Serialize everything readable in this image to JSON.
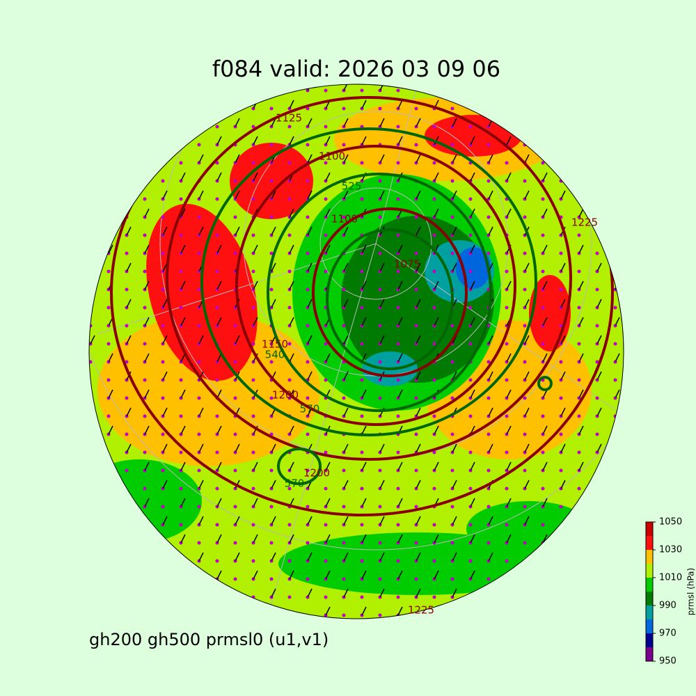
{
  "title": "f084 valid:   2026 03 09 06",
  "footer": "gh200 gh500 prmsl0 (u1,v1)",
  "contour_labels": {
    "gh200": [
      "1125",
      "1100",
      "1100",
      "1075",
      "1150",
      "1200",
      "1200",
      "1225",
      "1225"
    ],
    "gh500": [
      "525",
      "540",
      "570",
      "570"
    ]
  },
  "colorbar": {
    "label": "prmsl (hPa)",
    "lim": [
      950,
      1050
    ],
    "ticks": [
      950,
      970,
      990,
      1010,
      1030,
      1050
    ],
    "bins": [
      950,
      960,
      970,
      980,
      990,
      1000,
      1010,
      1020,
      1030,
      1040,
      1050
    ],
    "colors": [
      "#7a008a",
      "#000090",
      "#0066dd",
      "#00a0a0",
      "#007a00",
      "#00cc00",
      "#b0f000",
      "#ffc000",
      "#ff1010",
      "#cc0000"
    ]
  }
}
